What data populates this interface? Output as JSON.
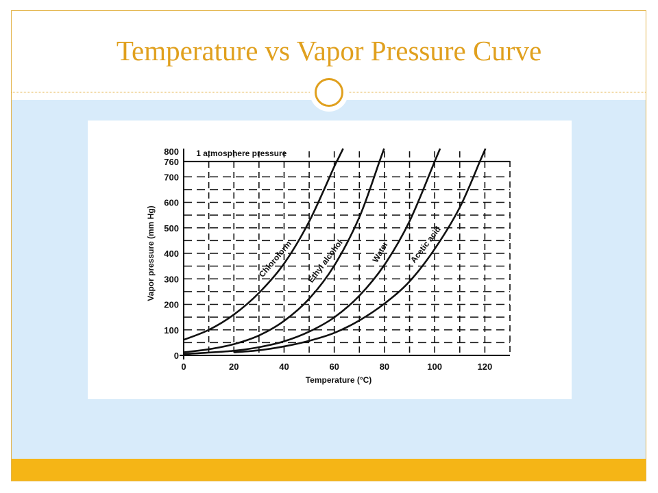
{
  "slide": {
    "title": "Temperature vs Vapor Pressure Curve",
    "colors": {
      "accent": "#e0a01e",
      "panel": "#d8ebfa",
      "footer": "#f5b516",
      "ink": "#111111"
    },
    "ornament_icon": "ring-icon"
  },
  "chart_data": {
    "type": "line",
    "title": "",
    "xlabel": "Temperature (°C)",
    "ylabel": "Vapor pressure (mm Hg)",
    "xlim": [
      0,
      130
    ],
    "ylim": [
      0,
      800
    ],
    "x_ticks": [
      0,
      20,
      40,
      60,
      80,
      100,
      120
    ],
    "y_ticks": [
      0,
      100,
      200,
      300,
      400,
      500,
      600,
      700,
      760,
      800
    ],
    "grid": true,
    "reference_line": {
      "y": 760,
      "label": "1 atmosphere pressure"
    },
    "series": [
      {
        "name": "Chloroform",
        "x": [
          0,
          10,
          20,
          30,
          40,
          50,
          60,
          61
        ],
        "y": [
          61,
          100,
          160,
          245,
          360,
          525,
          740,
          760
        ]
      },
      {
        "name": "Ethyl alcohol",
        "x": [
          0,
          10,
          20,
          30,
          40,
          50,
          60,
          70,
          78
        ],
        "y": [
          12,
          24,
          44,
          78,
          135,
          222,
          352,
          542,
          760
        ]
      },
      {
        "name": "Water",
        "x": [
          0,
          20,
          30,
          40,
          50,
          60,
          70,
          80,
          90,
          100
        ],
        "y": [
          5,
          18,
          32,
          55,
          93,
          149,
          234,
          355,
          526,
          760
        ]
      },
      {
        "name": "Acetic acid",
        "x": [
          20,
          30,
          40,
          50,
          60,
          70,
          80,
          90,
          100,
          110,
          118
        ],
        "y": [
          12,
          20,
          35,
          57,
          88,
          137,
          203,
          290,
          417,
          580,
          760
        ]
      }
    ]
  }
}
